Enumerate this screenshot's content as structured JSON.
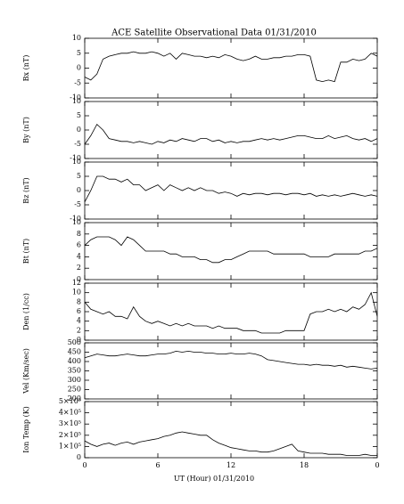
{
  "chart_data": [
    {
      "type": "line",
      "title": "ACE Satellite Observational Data   01/31/2010",
      "ylabel": "Bx (nT)",
      "color": "#000000",
      "xlim": [
        0,
        24
      ],
      "ylim": [
        -10,
        10
      ],
      "yticks": [
        -10,
        -5,
        0,
        5,
        10
      ],
      "x": [
        0,
        0.5,
        1,
        1.5,
        2,
        2.5,
        3,
        3.5,
        4,
        4.5,
        5,
        5.5,
        6,
        6.5,
        7,
        7.5,
        8,
        8.5,
        9,
        9.5,
        10,
        10.5,
        11,
        11.5,
        12,
        12.5,
        13,
        13.5,
        14,
        14.5,
        15,
        15.5,
        16,
        16.5,
        17,
        17.5,
        18,
        18.5,
        19,
        19.5,
        20,
        20.5,
        21,
        21.5,
        22,
        22.5,
        23,
        23.5,
        24
      ],
      "values": [
        -3,
        -4,
        -2,
        3,
        4,
        4.5,
        5,
        5,
        5.5,
        5,
        5,
        5.5,
        5,
        4,
        5,
        3,
        5,
        4.5,
        4,
        4,
        3.5,
        4,
        3.5,
        4.5,
        4,
        3,
        2.5,
        3,
        4,
        3,
        3,
        3.5,
        3.5,
        4,
        4,
        4.5,
        4.5,
        4,
        -4,
        -4.5,
        -4,
        -4.5,
        2,
        2,
        3,
        2.5,
        3,
        5,
        4
      ]
    },
    {
      "type": "line",
      "ylabel": "By (nT)",
      "color": "#000000",
      "xlim": [
        0,
        24
      ],
      "ylim": [
        -10,
        10
      ],
      "yticks": [
        -10,
        -5,
        0,
        5,
        10
      ],
      "x": [
        0,
        0.5,
        1,
        1.5,
        2,
        2.5,
        3,
        3.5,
        4,
        4.5,
        5,
        5.5,
        6,
        6.5,
        7,
        7.5,
        8,
        8.5,
        9,
        9.5,
        10,
        10.5,
        11,
        11.5,
        12,
        12.5,
        13,
        13.5,
        14,
        14.5,
        15,
        15.5,
        16,
        16.5,
        17,
        17.5,
        18,
        18.5,
        19,
        19.5,
        20,
        20.5,
        21,
        21.5,
        22,
        22.5,
        23,
        23.5,
        24
      ],
      "values": [
        -5,
        -2,
        2,
        0,
        -3,
        -3.5,
        -4,
        -4,
        -4.5,
        -4,
        -4.5,
        -5,
        -4,
        -4.5,
        -3.5,
        -4,
        -3,
        -3.5,
        -4,
        -3,
        -3,
        -4,
        -3.5,
        -4.5,
        -4,
        -4.5,
        -4,
        -4,
        -3.5,
        -3,
        -3.5,
        -3,
        -3.5,
        -3,
        -2.5,
        -2,
        -2,
        -2.5,
        -3,
        -3,
        -2,
        -3,
        -2.5,
        -2,
        -3,
        -3.5,
        -3,
        -4,
        -3
      ]
    },
    {
      "type": "line",
      "ylabel": "Bz (nT)",
      "color": "#000000",
      "xlim": [
        0,
        24
      ],
      "ylim": [
        -10,
        10
      ],
      "yticks": [
        -10,
        -5,
        0,
        5,
        10
      ],
      "x": [
        0,
        0.5,
        1,
        1.5,
        2,
        2.5,
        3,
        3.5,
        4,
        4.5,
        5,
        5.5,
        6,
        6.5,
        7,
        7.5,
        8,
        8.5,
        9,
        9.5,
        10,
        10.5,
        11,
        11.5,
        12,
        12.5,
        13,
        13.5,
        14,
        14.5,
        15,
        15.5,
        16,
        16.5,
        17,
        17.5,
        18,
        18.5,
        19,
        19.5,
        20,
        20.5,
        21,
        21.5,
        22,
        22.5,
        23,
        23.5,
        24
      ],
      "values": [
        -4,
        0,
        5,
        5,
        4,
        4,
        3,
        4,
        2,
        2,
        0,
        1,
        2,
        0,
        2,
        1,
        0,
        1,
        0,
        1,
        0,
        0,
        -1,
        -0.5,
        -1,
        -2,
        -1,
        -1.5,
        -1,
        -1,
        -1.5,
        -1,
        -1,
        -1.5,
        -1,
        -1,
        -1.5,
        -1,
        -2,
        -1.5,
        -2,
        -1.5,
        -2,
        -1.5,
        -1,
        -1.5,
        -2,
        -1.5,
        -2
      ]
    },
    {
      "type": "line",
      "ylabel": "Bt (nT)",
      "color": "#000000",
      "xlim": [
        0,
        24
      ],
      "ylim": [
        0,
        10
      ],
      "yticks": [
        0,
        2,
        4,
        6,
        8,
        10
      ],
      "x": [
        0,
        0.5,
        1,
        1.5,
        2,
        2.5,
        3,
        3.5,
        4,
        4.5,
        5,
        5.5,
        6,
        6.5,
        7,
        7.5,
        8,
        8.5,
        9,
        9.5,
        10,
        10.5,
        11,
        11.5,
        12,
        12.5,
        13,
        13.5,
        14,
        14.5,
        15,
        15.5,
        16,
        16.5,
        17,
        17.5,
        18,
        18.5,
        19,
        19.5,
        20,
        20.5,
        21,
        21.5,
        22,
        22.5,
        23,
        23.5,
        24
      ],
      "values": [
        6,
        7,
        7.5,
        7.5,
        7.5,
        7,
        6,
        7.5,
        7,
        6,
        5,
        5,
        5,
        5,
        4.5,
        4.5,
        4,
        4,
        4,
        3.5,
        3.5,
        3,
        3,
        3.5,
        3.5,
        4,
        4.5,
        5,
        5,
        5,
        5,
        4.5,
        4.5,
        4.5,
        4.5,
        4.5,
        4.5,
        4,
        4,
        4,
        4,
        4.5,
        4.5,
        4.5,
        4.5,
        4.5,
        5,
        5,
        5.5
      ]
    },
    {
      "type": "line",
      "ylabel": "Den (1/cc)",
      "color": "#000000",
      "xlim": [
        0,
        24
      ],
      "ylim": [
        0,
        12
      ],
      "yticks": [
        0,
        2,
        4,
        6,
        8,
        10,
        12
      ],
      "x": [
        0,
        0.5,
        1,
        1.5,
        2,
        2.5,
        3,
        3.5,
        4,
        4.5,
        5,
        5.5,
        6,
        6.5,
        7,
        7.5,
        8,
        8.5,
        9,
        9.5,
        10,
        10.5,
        11,
        11.5,
        12,
        12.5,
        13,
        13.5,
        14,
        14.5,
        15,
        15.5,
        16,
        16.5,
        17,
        17.5,
        18,
        18.5,
        19,
        19.5,
        20,
        20.5,
        21,
        21.5,
        22,
        22.5,
        23,
        23.5,
        24
      ],
      "values": [
        8,
        6.5,
        6,
        5.5,
        6,
        5,
        5,
        4.5,
        7,
        5,
        4,
        3.5,
        4,
        3.5,
        3,
        3.5,
        3,
        3.5,
        3,
        3,
        3,
        2.5,
        3,
        2.5,
        2.5,
        2.5,
        2,
        2,
        2,
        1.5,
        1.5,
        1.5,
        1.5,
        2,
        2,
        2,
        2,
        5.5,
        6,
        6,
        6.5,
        6,
        6.5,
        6,
        7,
        6.5,
        7.5,
        10,
        5
      ]
    },
    {
      "type": "line",
      "ylabel": "Vel (Km/sec)",
      "color": "#000000",
      "xlim": [
        0,
        24
      ],
      "ylim": [
        200,
        500
      ],
      "yticks": [
        200,
        250,
        300,
        350,
        400,
        450,
        500
      ],
      "x": [
        0,
        0.5,
        1,
        1.5,
        2,
        2.5,
        3,
        3.5,
        4,
        4.5,
        5,
        5.5,
        6,
        6.5,
        7,
        7.5,
        8,
        8.5,
        9,
        9.5,
        10,
        10.5,
        11,
        11.5,
        12,
        12.5,
        13,
        13.5,
        14,
        14.5,
        15,
        15.5,
        16,
        16.5,
        17,
        17.5,
        18,
        18.5,
        19,
        19.5,
        20,
        20.5,
        21,
        21.5,
        22,
        22.5,
        23,
        23.5,
        24
      ],
      "values": [
        420,
        430,
        440,
        435,
        430,
        430,
        435,
        440,
        435,
        430,
        430,
        435,
        440,
        440,
        445,
        455,
        450,
        455,
        450,
        450,
        445,
        445,
        440,
        440,
        445,
        440,
        440,
        445,
        440,
        430,
        410,
        405,
        400,
        395,
        390,
        385,
        385,
        380,
        385,
        380,
        380,
        375,
        380,
        370,
        375,
        370,
        365,
        360,
        365
      ]
    },
    {
      "type": "line",
      "ylabel": "Ion Temp (K)",
      "xlabel": "UT (Hour)   01/31/2010",
      "color": "#000000",
      "xlim": [
        0,
        24
      ],
      "xticks": [
        0,
        6,
        12,
        18,
        {
          "value": 24,
          "label": "0"
        }
      ],
      "ylim": [
        0,
        500000
      ],
      "yticks": [
        0,
        {
          "value": 100000,
          "label": "1×10⁵"
        },
        {
          "value": 200000,
          "label": "2×10⁵"
        },
        {
          "value": 300000,
          "label": "3×10⁵"
        },
        {
          "value": 400000,
          "label": "4×10⁵"
        },
        {
          "value": 500000,
          "label": "5×10⁵"
        }
      ],
      "x": [
        0,
        0.5,
        1,
        1.5,
        2,
        2.5,
        3,
        3.5,
        4,
        4.5,
        5,
        5.5,
        6,
        6.5,
        7,
        7.5,
        8,
        8.5,
        9,
        9.5,
        10,
        10.5,
        11,
        11.5,
        12,
        12.5,
        13,
        13.5,
        14,
        14.5,
        15,
        15.5,
        16,
        16.5,
        17,
        17.5,
        18,
        18.5,
        19,
        19.5,
        20,
        20.5,
        21,
        21.5,
        22,
        22.5,
        23,
        23.5,
        24
      ],
      "values": [
        150000,
        120000,
        100000,
        120000,
        130000,
        110000,
        130000,
        140000,
        120000,
        140000,
        150000,
        160000,
        170000,
        190000,
        200000,
        220000,
        230000,
        220000,
        210000,
        200000,
        200000,
        160000,
        130000,
        110000,
        90000,
        80000,
        70000,
        60000,
        60000,
        50000,
        50000,
        60000,
        80000,
        100000,
        120000,
        60000,
        50000,
        40000,
        40000,
        40000,
        30000,
        30000,
        30000,
        20000,
        20000,
        20000,
        30000,
        20000,
        20000
      ]
    }
  ]
}
